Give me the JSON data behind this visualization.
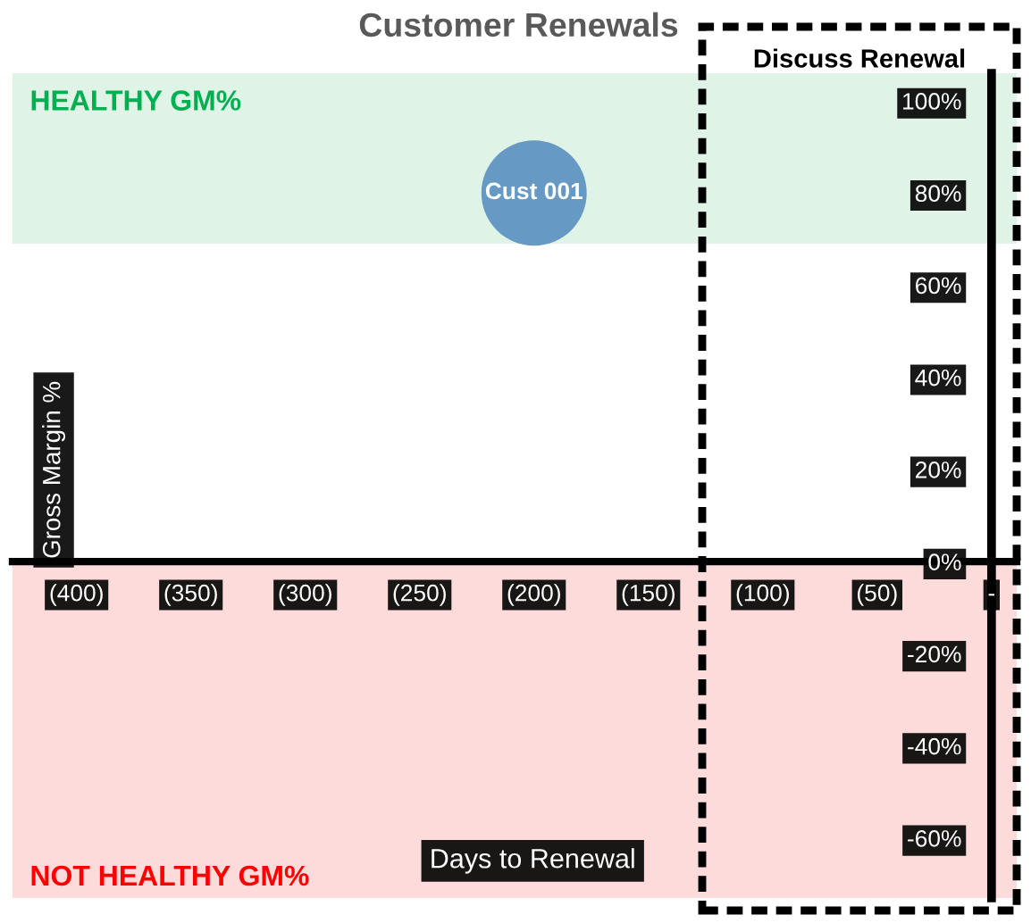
{
  "chart_data": {
    "type": "bubble",
    "title": "Customer Renewals",
    "xlabel": "Days to Renewal",
    "ylabel": "Gross Margin %",
    "series": [
      {
        "name": "Cust 001",
        "color": "#6699c4",
        "x": [
          -200
        ],
        "values": [
          80
        ],
        "sizes": [
          1
        ]
      }
    ],
    "xlim": [
      -428,
      11
    ],
    "xticks": [
      {
        "value": -400,
        "label": "(400)"
      },
      {
        "value": -350,
        "label": "(350)"
      },
      {
        "value": -300,
        "label": "(300)"
      },
      {
        "value": -250,
        "label": "(250)"
      },
      {
        "value": -200,
        "label": "(200)"
      },
      {
        "value": -150,
        "label": "(150)"
      },
      {
        "value": -100,
        "label": "(100)"
      },
      {
        "value": -50,
        "label": "(50)"
      },
      {
        "value": 0,
        "label": "-"
      }
    ],
    "ylim": [
      -73,
      106
    ],
    "yticks": [
      {
        "value": -60,
        "label": "-60%"
      },
      {
        "value": -40,
        "label": "-40%"
      },
      {
        "value": -20,
        "label": "-20%"
      },
      {
        "value": 0,
        "label": "0%"
      },
      {
        "value": 20,
        "label": "20%"
      },
      {
        "value": 40,
        "label": "40%"
      },
      {
        "value": 60,
        "label": "60%"
      },
      {
        "value": 80,
        "label": "80%"
      },
      {
        "value": 100,
        "label": "100%"
      }
    ],
    "bands": [
      {
        "axis": "y",
        "from": 69,
        "to": 106,
        "label": "HEALTHY GM%",
        "color": "#dff3e6"
      },
      {
        "axis": "y",
        "from": -73,
        "to": 0,
        "label": "NOT HEALTHY GM%",
        "color": "#fddbdb"
      }
    ],
    "annotations": [
      "Discuss Renewal"
    ]
  }
}
